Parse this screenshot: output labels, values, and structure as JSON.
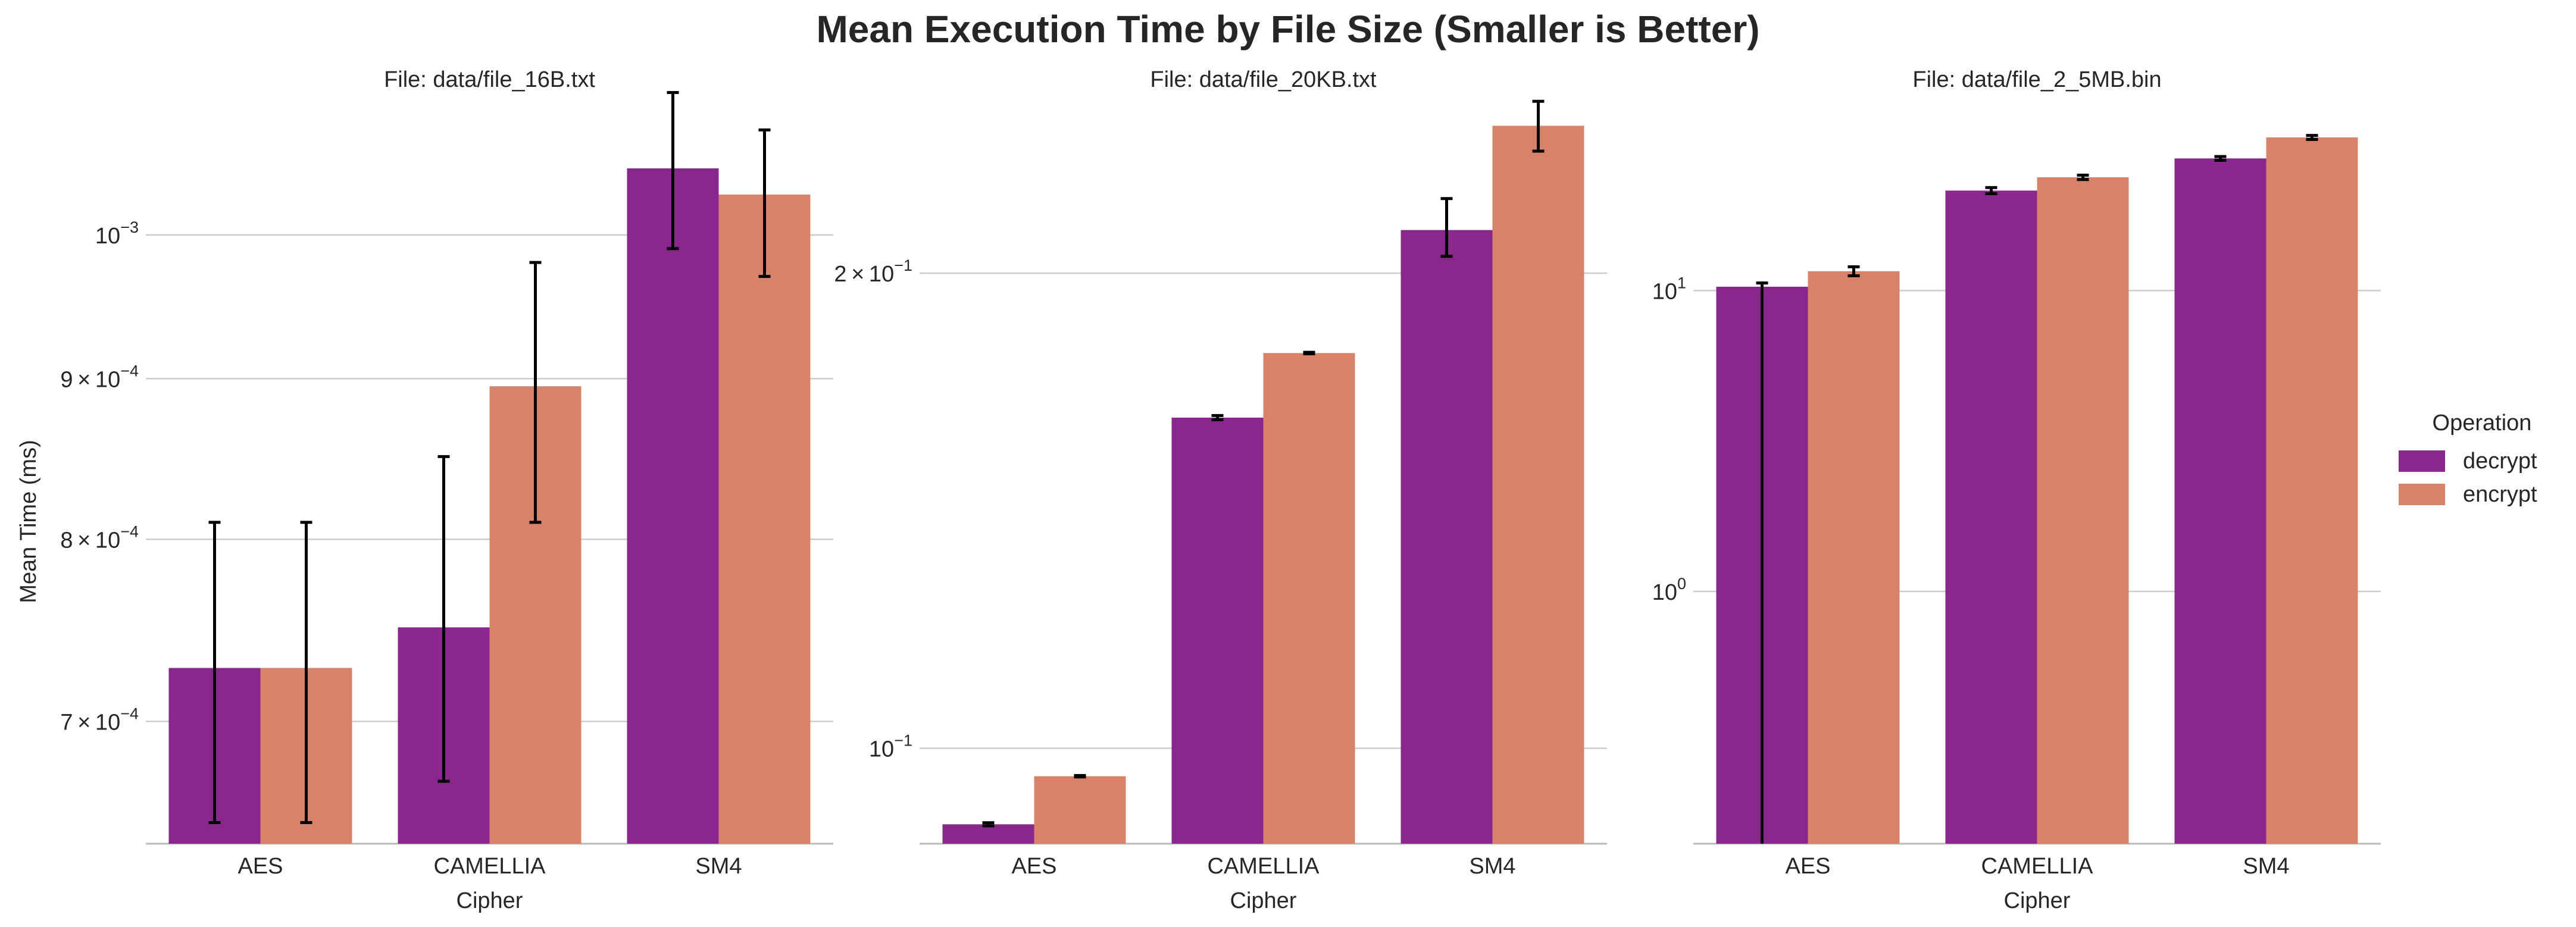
{
  "figure": {
    "suptitle": "Mean Execution Time by File Size (Smaller is Better)"
  },
  "legend": {
    "title": "Operation",
    "items": [
      {
        "label": "decrypt",
        "color": "#8a278c"
      },
      {
        "label": "encrypt",
        "color": "#d9826a"
      }
    ]
  },
  "chart_data": [
    {
      "type": "bar",
      "title": "File: data/file_16B.txt",
      "xlabel": "Cipher",
      "ylabel": "Mean Time (ms)",
      "yscale": "log",
      "ylim": [
        0.00064,
        0.00112
      ],
      "grid": "horizontal",
      "categories": [
        "AES",
        "CAMELLIA",
        "SM4"
      ],
      "yticks": [
        {
          "value": 0.0007,
          "mantissa": "7 × 10",
          "exponent": "−4"
        },
        {
          "value": 0.0008,
          "mantissa": "8 × 10",
          "exponent": "−4"
        },
        {
          "value": 0.0009,
          "mantissa": "9 × 10",
          "exponent": "−4"
        },
        {
          "value": 0.001,
          "mantissa": "10",
          "exponent": "−3"
        }
      ],
      "series": [
        {
          "name": "decrypt",
          "values": [
            0.000728,
            0.00075,
            0.00105
          ],
          "err_low": [
            0.00065,
            0.00067,
            0.00099
          ],
          "err_high": [
            0.00081,
            0.00085,
            0.00111
          ]
        },
        {
          "name": "encrypt",
          "values": [
            0.000728,
            0.000895,
            0.00103
          ],
          "err_low": [
            0.00065,
            0.00081,
            0.00097
          ],
          "err_high": [
            0.00081,
            0.00098,
            0.00108
          ]
        }
      ]
    },
    {
      "type": "bar",
      "title": "File: data/file_20KB.txt",
      "xlabel": "Cipher",
      "ylabel": "",
      "yscale": "log",
      "ylim": [
        0.087,
        0.265
      ],
      "grid": "horizontal",
      "categories": [
        "AES",
        "CAMELLIA",
        "SM4"
      ],
      "yticks": [
        {
          "value": 0.1,
          "mantissa": "10",
          "exponent": "−1"
        },
        {
          "value": 0.2,
          "mantissa": "2 × 10",
          "exponent": "−1"
        }
      ],
      "series": [
        {
          "name": "decrypt",
          "values": [
            0.0895,
            0.162,
            0.213
          ],
          "err_low": [
            0.0893,
            0.1615,
            0.205
          ],
          "err_high": [
            0.0897,
            0.1625,
            0.223
          ]
        },
        {
          "name": "encrypt",
          "values": [
            0.096,
            0.178,
            0.248
          ],
          "err_low": [
            0.0959,
            0.1778,
            0.239
          ],
          "err_high": [
            0.0961,
            0.1782,
            0.257
          ]
        }
      ]
    },
    {
      "type": "bar",
      "title": "File: data/file_2_5MB.bin",
      "xlabel": "Cipher",
      "ylabel": "",
      "yscale": "log",
      "ylim": [
        0.145,
        50
      ],
      "grid": "horizontal",
      "categories": [
        "AES",
        "CAMELLIA",
        "SM4"
      ],
      "yticks": [
        {
          "value": 1,
          "mantissa": "10",
          "exponent": "0"
        },
        {
          "value": 10,
          "mantissa": "10",
          "exponent": "1"
        }
      ],
      "series": [
        {
          "name": "decrypt",
          "values": [
            10.3,
            21.5,
            27.5
          ],
          "err_low": [
            0.1,
            21.0,
            27.1
          ],
          "err_high": [
            10.6,
            22.0,
            27.9
          ]
        },
        {
          "name": "encrypt",
          "values": [
            11.6,
            23.8,
            32.3
          ],
          "err_low": [
            11.2,
            23.4,
            31.8
          ],
          "err_high": [
            12.0,
            24.2,
            32.8
          ]
        }
      ]
    }
  ]
}
